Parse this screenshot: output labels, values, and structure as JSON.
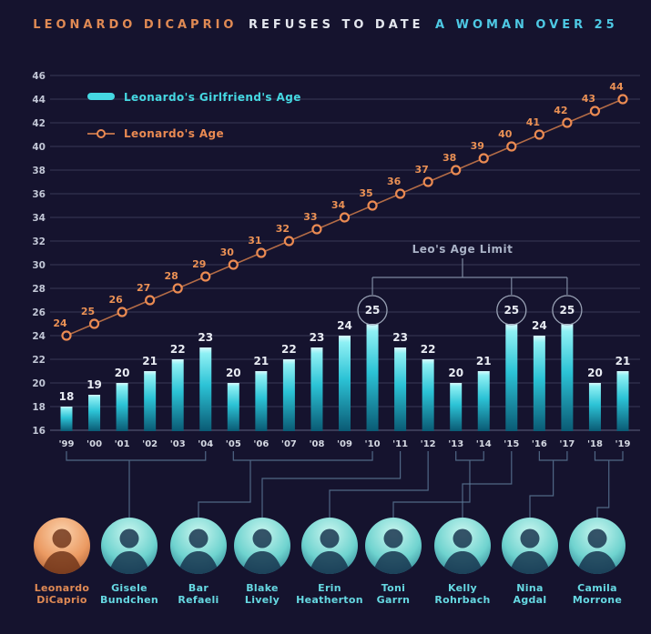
{
  "title": {
    "part1": "LEONARDO DICAPRIO",
    "part2": "REFUSES TO DATE",
    "part3": "A WOMAN OVER 25"
  },
  "legend": [
    {
      "label": "Leonardo's Girlfriend's Age",
      "color": "#45d8e2",
      "marker": "bar-swatch"
    },
    {
      "label": "Leonardo's Age",
      "color": "#ea8a52",
      "marker": "line-with-ring"
    }
  ],
  "chart_data": {
    "type": "bar+line",
    "categories": [
      "'99",
      "'00",
      "'01",
      "'02",
      "'03",
      "'04",
      "'05",
      "'06",
      "'07",
      "'08",
      "'09",
      "'10",
      "'11",
      "'12",
      "'13",
      "'14",
      "'15",
      "'16",
      "'17",
      "'18",
      "'19"
    ],
    "series": [
      {
        "name": "Leonardo's Girlfriend's Age",
        "type": "bar",
        "color": "#45d8e2",
        "values": [
          18,
          19,
          20,
          21,
          22,
          23,
          20,
          21,
          22,
          23,
          24,
          25,
          23,
          22,
          20,
          21,
          25,
          24,
          25,
          20,
          21
        ]
      },
      {
        "name": "Leonardo's Age",
        "type": "line",
        "color": "#ea8a52",
        "values": [
          24,
          25,
          26,
          27,
          28,
          29,
          30,
          31,
          32,
          33,
          34,
          35,
          36,
          37,
          38,
          39,
          40,
          41,
          42,
          43,
          44
        ]
      }
    ],
    "ylim": [
      16,
      46
    ],
    "ytick_step": 2,
    "grid": true,
    "legend_position": "top-left",
    "annotation": {
      "label": "Leo's Age Limit",
      "circled_categories": [
        "'10",
        "'15",
        "'17"
      ]
    }
  },
  "people": [
    {
      "line1": "Leonardo",
      "line2": "DiCaprio",
      "accent": "orange",
      "span": null
    },
    {
      "line1": "Gisele",
      "line2": "Bundchen",
      "accent": "cyan",
      "span": [
        "'99",
        "'04"
      ]
    },
    {
      "line1": "Bar",
      "line2": "Refaeli",
      "accent": "cyan",
      "span": [
        "'05",
        "'10"
      ]
    },
    {
      "line1": "Blake",
      "line2": "Lively",
      "accent": "cyan",
      "span": [
        "'11",
        "'11"
      ]
    },
    {
      "line1": "Erin",
      "line2": "Heatherton",
      "accent": "cyan",
      "span": [
        "'12",
        "'12"
      ]
    },
    {
      "line1": "Toni",
      "line2": "Garrn",
      "accent": "cyan",
      "span": [
        "'13",
        "'14"
      ]
    },
    {
      "line1": "Kelly",
      "line2": "Rohrbach",
      "accent": "cyan",
      "span": [
        "'15",
        "'15"
      ]
    },
    {
      "line1": "Nina",
      "line2": "Agdal",
      "accent": "cyan",
      "span": [
        "'16",
        "'17"
      ]
    },
    {
      "line1": "Camila",
      "line2": "Morrone",
      "accent": "cyan",
      "span": [
        "'18",
        "'19"
      ]
    }
  ],
  "colors": {
    "background": "#15132e",
    "title_orange": "#e08a54",
    "title_white": "#e4e7ee",
    "title_cyan": "#4ec9e4",
    "bar_top": "#d9fbfd",
    "bar_mid": "#2cc3d6",
    "bar_bottom": "#0a5a74",
    "bar_label": "#e8ebf2",
    "line": "#b26b46",
    "line_marker": "#ea8a52",
    "line_label": "#eb9155",
    "grid": "rgba(150,160,190,0.28)",
    "axis_label": "#c2c7d6",
    "year_label": "#d4d8e2",
    "annotation_text": "#a9b2c6",
    "annotation_line": "#7d89a0",
    "connector": "#5f7d9c",
    "name_cyan": "#66d8e2"
  }
}
